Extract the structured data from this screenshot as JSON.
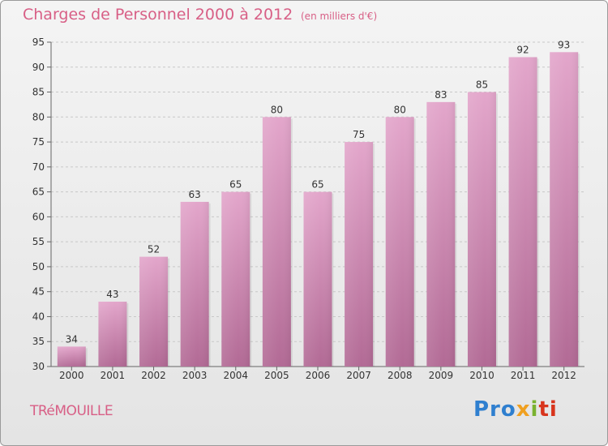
{
  "header": {
    "title": "Charges de Personnel 2000 à 2012",
    "unit": "(en milliers d'€)"
  },
  "footer": {
    "commune": "TRéMOUILLE",
    "logo_parts": [
      "Pro",
      "x",
      "i",
      "ti"
    ]
  },
  "colors": {
    "bar_top": "#e3a6cb",
    "bar_bottom": "#b26a95",
    "title": "#d85f86"
  },
  "chart_data": {
    "type": "bar",
    "title": "Charges de Personnel 2000 à 2012",
    "subtitle": "(en milliers d'€)",
    "xlabel": "",
    "ylabel": "",
    "categories": [
      "2000",
      "2001",
      "2002",
      "2003",
      "2004",
      "2005",
      "2006",
      "2007",
      "2008",
      "2009",
      "2010",
      "2011",
      "2012"
    ],
    "values": [
      34,
      43,
      52,
      63,
      65,
      80,
      65,
      75,
      80,
      83,
      85,
      92,
      93
    ],
    "ylim": [
      30,
      95
    ],
    "yticks": [
      30,
      35,
      40,
      45,
      50,
      55,
      60,
      65,
      70,
      75,
      80,
      85,
      90,
      95
    ],
    "grid": true
  }
}
